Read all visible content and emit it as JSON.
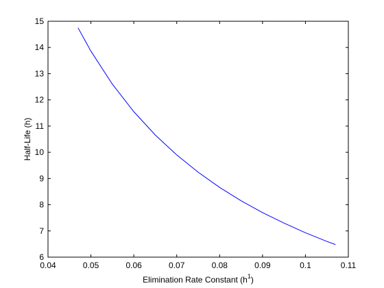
{
  "chart_data": {
    "type": "line",
    "title": "",
    "xlabel": "Elimination Rate Constant (h",
    "xlabel_superscript": "1",
    "xlabel_suffix": ")",
    "ylabel": "Half-Life (h)",
    "xlim": [
      0.04,
      0.11
    ],
    "ylim": [
      6,
      15
    ],
    "xticks": [
      0.04,
      0.05,
      0.06,
      0.07,
      0.08,
      0.09,
      0.1,
      0.11
    ],
    "xtick_labels": [
      "0.04",
      "0.05",
      "0.06",
      "0.07",
      "0.08",
      "0.09",
      "0.1",
      "0.11"
    ],
    "yticks": [
      6,
      7,
      8,
      9,
      10,
      11,
      12,
      13,
      14,
      15
    ],
    "ytick_labels": [
      "6",
      "7",
      "8",
      "9",
      "10",
      "11",
      "12",
      "13",
      "14",
      "15"
    ],
    "grid": false,
    "series": [
      {
        "color": "#0000ff",
        "x": [
          0.047,
          0.05,
          0.055,
          0.06,
          0.065,
          0.07,
          0.075,
          0.08,
          0.085,
          0.09,
          0.095,
          0.1,
          0.105,
          0.107
        ],
        "y": [
          14.75,
          13.86,
          12.6,
          11.55,
          10.66,
          9.9,
          9.24,
          8.66,
          8.15,
          7.7,
          7.3,
          6.93,
          6.6,
          6.48
        ]
      }
    ]
  }
}
